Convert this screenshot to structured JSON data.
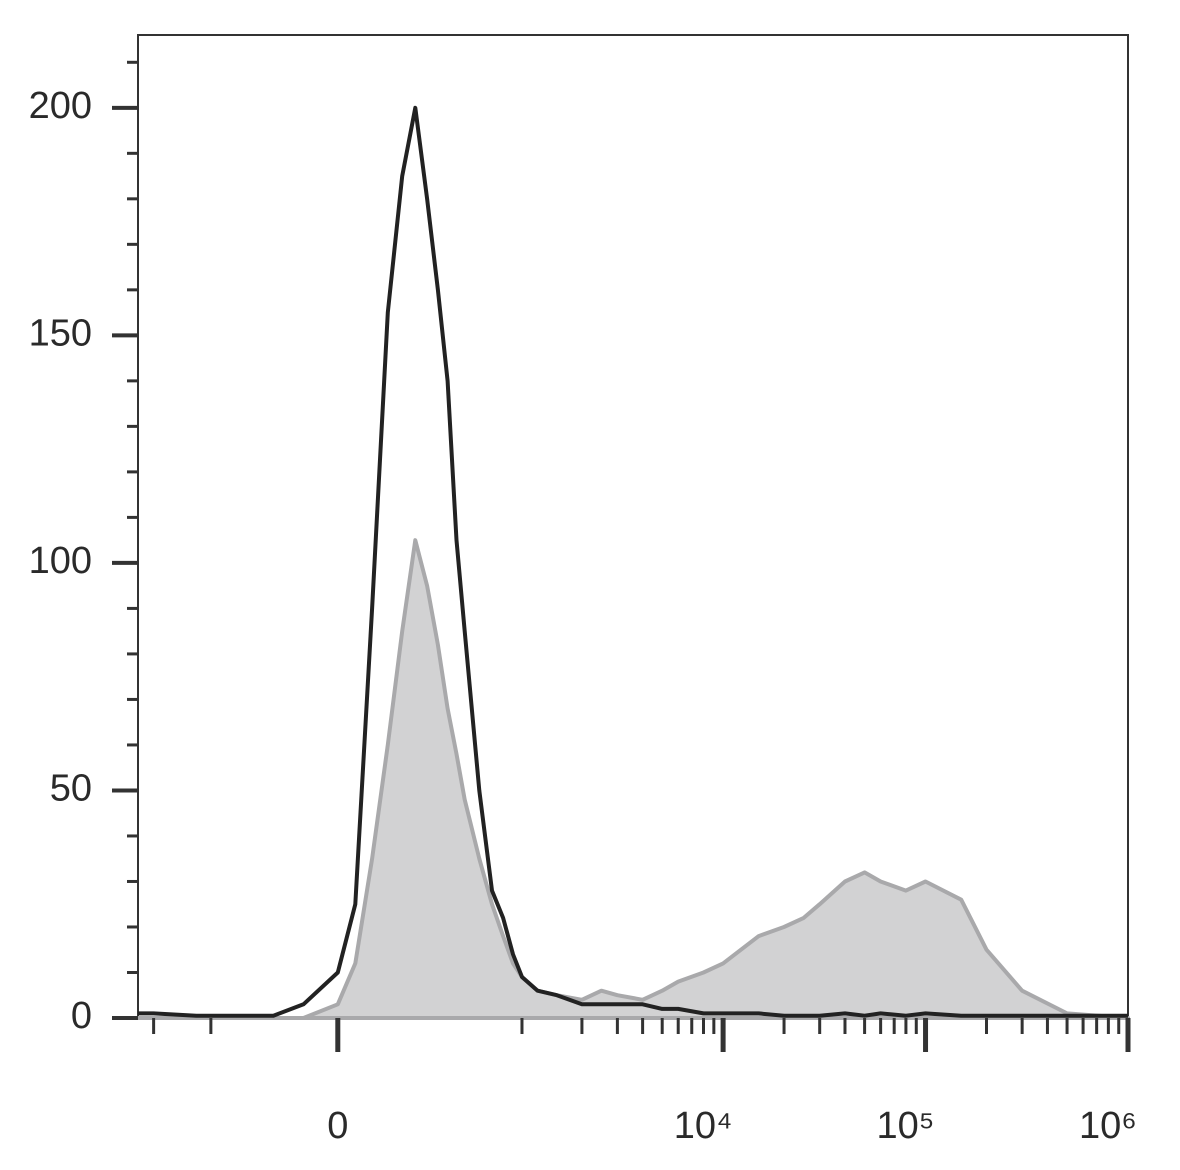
{
  "chart_data": {
    "type": "histogram-overlay",
    "x": [
      -1200,
      -1000,
      -600,
      -200,
      -100,
      0,
      50,
      100,
      150,
      200,
      250,
      300,
      350,
      400,
      450,
      500,
      600,
      700,
      800,
      900,
      1000,
      1200,
      1500,
      2000,
      2500,
      3000,
      4000,
      5000,
      6000,
      8000,
      10000,
      15000,
      20000,
      25000,
      30000,
      40000,
      50000,
      60000,
      80000,
      100000,
      150000,
      200000,
      300000,
      500000,
      1000000
    ],
    "series": [
      {
        "color": "#222222",
        "fill": "none",
        "values": [
          1,
          1,
          0.5,
          0.5,
          3,
          10,
          25,
          90,
          155,
          185,
          200,
          180,
          160,
          140,
          105,
          85,
          50,
          28,
          22,
          14,
          9,
          6,
          5,
          3,
          3,
          3,
          3,
          2,
          2,
          1,
          1,
          1,
          0.5,
          0.5,
          0.5,
          1,
          0.5,
          1,
          0.5,
          1,
          0.5,
          0.5,
          0.5,
          0.5,
          0.5
        ]
      },
      {
        "color": "#a9a9ab",
        "fill": "#d2d2d3",
        "values": [
          0,
          0,
          0,
          0,
          0,
          3,
          12,
          35,
          60,
          85,
          105,
          95,
          82,
          68,
          58,
          48,
          35,
          25,
          18,
          12,
          9,
          6,
          5,
          4,
          6,
          5,
          4,
          6,
          8,
          10,
          12,
          18,
          20,
          22,
          25,
          30,
          32,
          30,
          28,
          30,
          26,
          15,
          6,
          1,
          0
        ]
      }
    ],
    "xscale": {
      "type": "biex",
      "width": 250
    },
    "xlim": [
      -1200,
      1000000
    ],
    "xticks": [
      0,
      {
        "value": 10000,
        "label": "10⁴"
      },
      {
        "value": 100000,
        "label": "10⁵"
      },
      {
        "value": 1000000,
        "label": "10⁶"
      }
    ],
    "xminor_ticks": [
      -1000,
      -500,
      1000,
      2000,
      3000,
      4000,
      5000,
      6000,
      7000,
      8000,
      9000,
      20000,
      30000,
      40000,
      50000,
      60000,
      70000,
      80000,
      90000,
      200000,
      300000,
      400000,
      500000,
      600000,
      700000,
      800000,
      900000
    ],
    "ylim": [
      0,
      216
    ],
    "yticks": [
      0,
      50,
      100,
      150,
      200
    ],
    "yminor_ticks": [
      10,
      20,
      30,
      40,
      60,
      70,
      80,
      90,
      110,
      120,
      130,
      140,
      160,
      170,
      180,
      190,
      210
    ]
  }
}
